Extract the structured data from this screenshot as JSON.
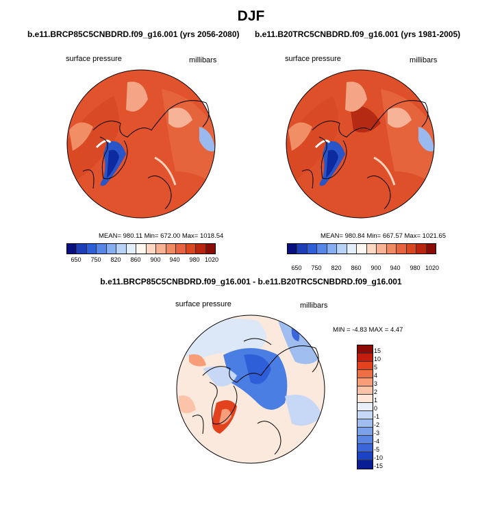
{
  "title": "DJF",
  "panel_left": {
    "case": "b.e11.BRCP85C5CNBDRD.f09_g16.001 (yrs 2056-2080)",
    "variable": "surface pressure",
    "units": "millibars",
    "stats": "MEAN= 980.11   Min= 672.00   Max= 1018.54"
  },
  "panel_right": {
    "case": "b.e11.B20TRC5CNBDRD.f09_g16.001 (yrs 1981-2005)",
    "variable": "surface pressure",
    "units": "millibars",
    "stats": "MEAN= 980.84   Min= 667.57   Max= 1021.65"
  },
  "panel_diff": {
    "case": "b.e11.BRCP85C5CNBDRD.f09_g16.001 - b.e11.B20TRC5CNBDRD.f09_g16.001",
    "variable": "surface pressure",
    "units": "millibars",
    "stats": "MIN =  -4.83 MAX =   4.47"
  },
  "abs_colorbar": {
    "colors": [
      "#08107e",
      "#1c3fb8",
      "#2f5fd8",
      "#5686e8",
      "#86aff2",
      "#b9d3f7",
      "#e3eefb",
      "#fff8f0",
      "#fcd8c2",
      "#f7b193",
      "#f08a63",
      "#e86440",
      "#d9461f",
      "#b8240d",
      "#8a0d05"
    ],
    "labels": [
      "650",
      "750",
      "820",
      "860",
      "900",
      "940",
      "980",
      "1020"
    ]
  },
  "diff_colorbar": {
    "colors": [
      "#8c0b06",
      "#c41c0d",
      "#e2431e",
      "#ef6f45",
      "#f79d78",
      "#fbc4a9",
      "#fde6d8",
      "#e9f0fb",
      "#c6d8f5",
      "#9fbdef",
      "#7aa1e9",
      "#5a85e3",
      "#3a66d9",
      "#1b43c4",
      "#0a1e94"
    ],
    "labels": [
      "15",
      "10",
      "5",
      "4",
      "3",
      "2",
      "1",
      "0",
      "-1",
      "-2",
      "-3",
      "-4",
      "-5",
      "-10",
      "-15"
    ]
  }
}
